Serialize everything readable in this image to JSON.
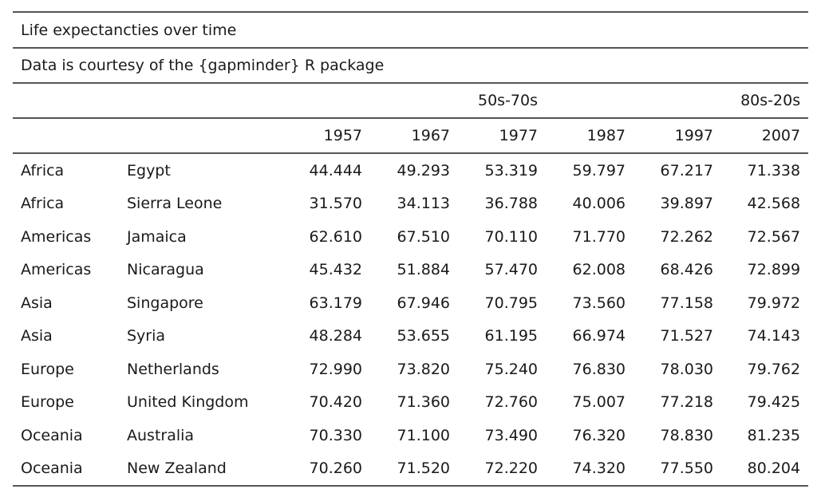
{
  "title": "Life expectancties over time",
  "subtitle": "Data is courtesy of the {gapminder} R package",
  "spanners": [
    {
      "label": "50s-70s"
    },
    {
      "label": "80s-20s"
    }
  ],
  "columns": [
    "",
    "",
    "1957",
    "1967",
    "1977",
    "1987",
    "1997",
    "2007"
  ],
  "rows": [
    [
      "Africa",
      "Egypt",
      "44.444",
      "49.293",
      "53.319",
      "59.797",
      "67.217",
      "71.338"
    ],
    [
      "Africa",
      "Sierra Leone",
      "31.570",
      "34.113",
      "36.788",
      "40.006",
      "39.897",
      "42.568"
    ],
    [
      "Americas",
      "Jamaica",
      "62.610",
      "67.510",
      "70.110",
      "71.770",
      "72.262",
      "72.567"
    ],
    [
      "Americas",
      "Nicaragua",
      "45.432",
      "51.884",
      "57.470",
      "62.008",
      "68.426",
      "72.899"
    ],
    [
      "Asia",
      "Singapore",
      "63.179",
      "67.946",
      "70.795",
      "73.560",
      "77.158",
      "79.972"
    ],
    [
      "Asia",
      "Syria",
      "48.284",
      "53.655",
      "61.195",
      "66.974",
      "71.527",
      "74.143"
    ],
    [
      "Europe",
      "Netherlands",
      "72.990",
      "73.820",
      "75.240",
      "76.830",
      "78.030",
      "79.762"
    ],
    [
      "Europe",
      "United Kingdom",
      "70.420",
      "71.360",
      "72.760",
      "75.007",
      "77.218",
      "79.425"
    ],
    [
      "Oceania",
      "Australia",
      "70.330",
      "71.100",
      "73.490",
      "76.320",
      "78.830",
      "81.235"
    ],
    [
      "Oceania",
      "New Zealand",
      "70.260",
      "71.520",
      "72.220",
      "74.320",
      "77.550",
      "80.204"
    ]
  ]
}
